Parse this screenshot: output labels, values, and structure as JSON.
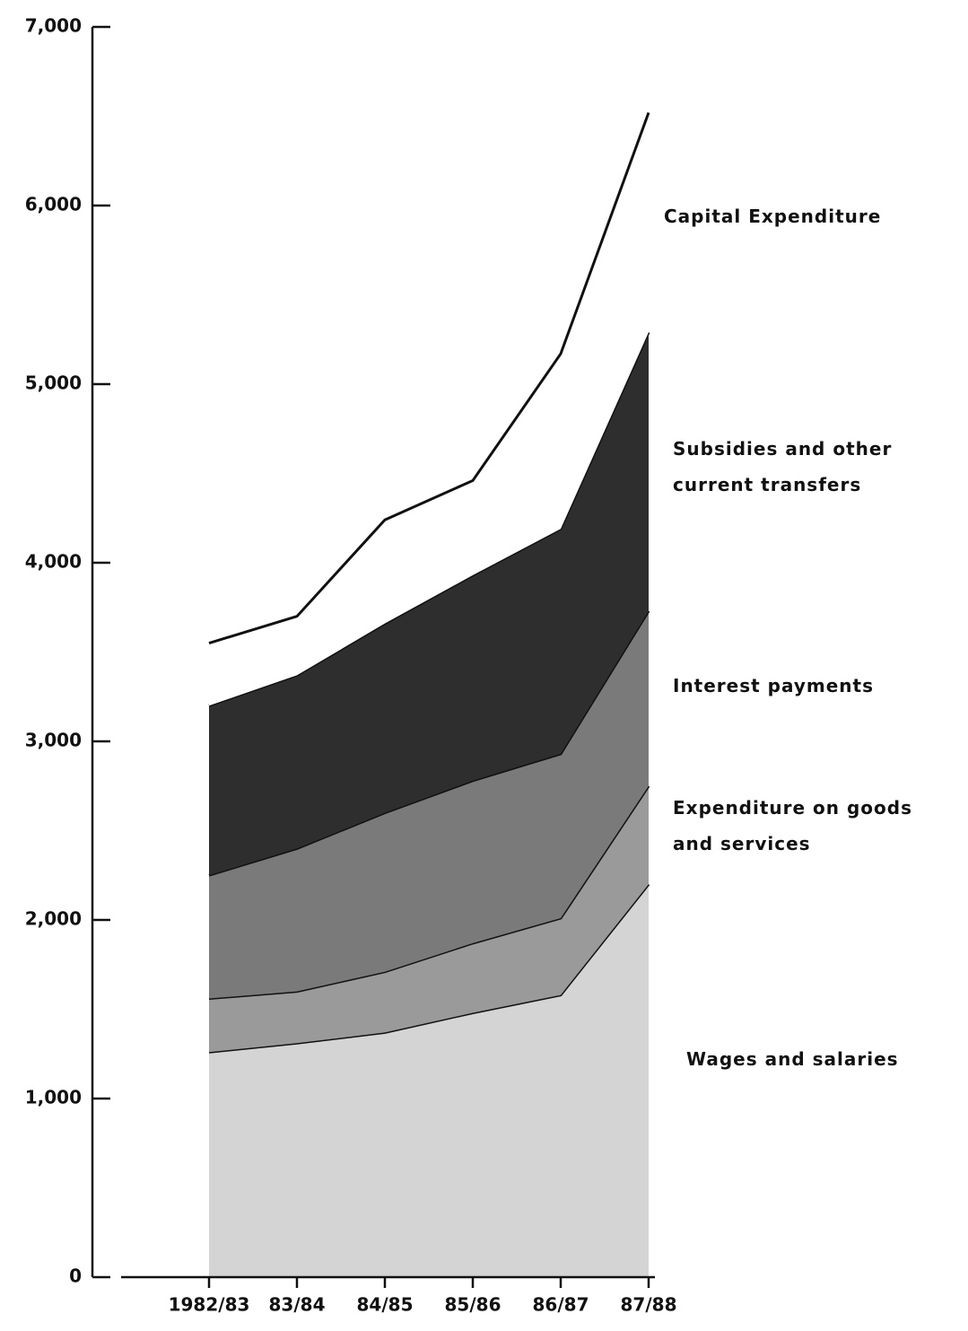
{
  "chart_data": {
    "type": "stacked-area",
    "categories": [
      "1982/83",
      "83/84",
      "84/85",
      "85/86",
      "86/87",
      "87/88"
    ],
    "series": [
      {
        "name": "Wages and salaries",
        "color": "#d4d4d4",
        "values": [
          1260,
          1310,
          1370,
          1480,
          1580,
          2200
        ]
      },
      {
        "name": "Expenditure on goods and services",
        "color": "#9a9a9a",
        "values": [
          300,
          290,
          340,
          390,
          430,
          550
        ]
      },
      {
        "name": "Interest payments",
        "color": "#7a7a7a",
        "values": [
          690,
          800,
          890,
          910,
          920,
          980
        ]
      },
      {
        "name": "Subsidies and other current transfers",
        "color": "#2e2e2e",
        "values": [
          950,
          970,
          1060,
          1150,
          1260,
          1560
        ]
      },
      {
        "name": "Capital Expenditure",
        "color": "#ffffff",
        "values": [
          350,
          330,
          580,
          530,
          980,
          1230
        ]
      }
    ],
    "ylim": [
      0,
      7000
    ],
    "yticks": [
      0,
      {
        "value": 1000,
        "label": "1,000"
      },
      {
        "value": 2000,
        "label": "2,000"
      },
      {
        "value": 3000,
        "label": "3,000"
      },
      {
        "value": 4000,
        "label": "4,000"
      },
      {
        "value": 5000,
        "label": "5,000"
      },
      {
        "value": 6000,
        "label": "6,000"
      },
      {
        "value": 7000,
        "label": "7,000"
      }
    ]
  }
}
